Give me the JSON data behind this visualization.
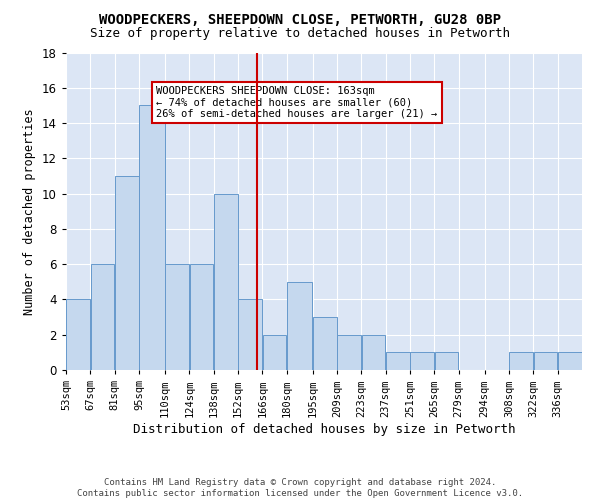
{
  "title": "WOODPECKERS, SHEEPDOWN CLOSE, PETWORTH, GU28 0BP",
  "subtitle": "Size of property relative to detached houses in Petworth",
  "xlabel": "Distribution of detached houses by size in Petworth",
  "ylabel": "Number of detached properties",
  "bar_values": [
    4,
    6,
    11,
    15,
    6,
    6,
    10,
    4,
    2,
    5,
    3,
    2,
    2,
    1,
    1,
    1,
    0,
    0,
    1,
    1,
    1
  ],
  "bin_left": [
    53,
    67,
    81,
    95,
    110,
    124,
    138,
    152,
    166,
    180,
    195,
    209,
    223,
    237,
    251,
    265,
    279,
    294,
    308,
    322,
    336
  ],
  "bin_right": [
    67,
    81,
    95,
    110,
    124,
    138,
    152,
    166,
    180,
    195,
    209,
    223,
    237,
    251,
    265,
    279,
    294,
    308,
    322,
    336,
    350
  ],
  "tick_labels": [
    "53sqm",
    "67sqm",
    "81sqm",
    "95sqm",
    "110sqm",
    "124sqm",
    "138sqm",
    "152sqm",
    "166sqm",
    "180sqm",
    "195sqm",
    "209sqm",
    "223sqm",
    "237sqm",
    "251sqm",
    "265sqm",
    "279sqm",
    "294sqm",
    "308sqm",
    "322sqm",
    "336sqm"
  ],
  "bar_color": "#c5d8ee",
  "bar_edge_color": "#6699cc",
  "vline_x": 163,
  "vline_color": "#cc0000",
  "annotation_text": "WOODPECKERS SHEEPDOWN CLOSE: 163sqm\n← 74% of detached houses are smaller (60)\n26% of semi-detached houses are larger (21) →",
  "annotation_box_color": "#ffffff",
  "annotation_box_edge": "#cc0000",
  "ylim": [
    0,
    18
  ],
  "yticks": [
    0,
    2,
    4,
    6,
    8,
    10,
    12,
    14,
    16,
    18
  ],
  "xlim_left": 53,
  "xlim_right": 350,
  "background_color": "#dce6f5",
  "footer_line1": "Contains HM Land Registry data © Crown copyright and database right 2024.",
  "footer_line2": "Contains public sector information licensed under the Open Government Licence v3.0.",
  "title_fontsize": 10,
  "subtitle_fontsize": 9,
  "xlabel_fontsize": 9,
  "ylabel_fontsize": 8.5,
  "tick_fontsize": 7.5,
  "footer_fontsize": 6.5
}
